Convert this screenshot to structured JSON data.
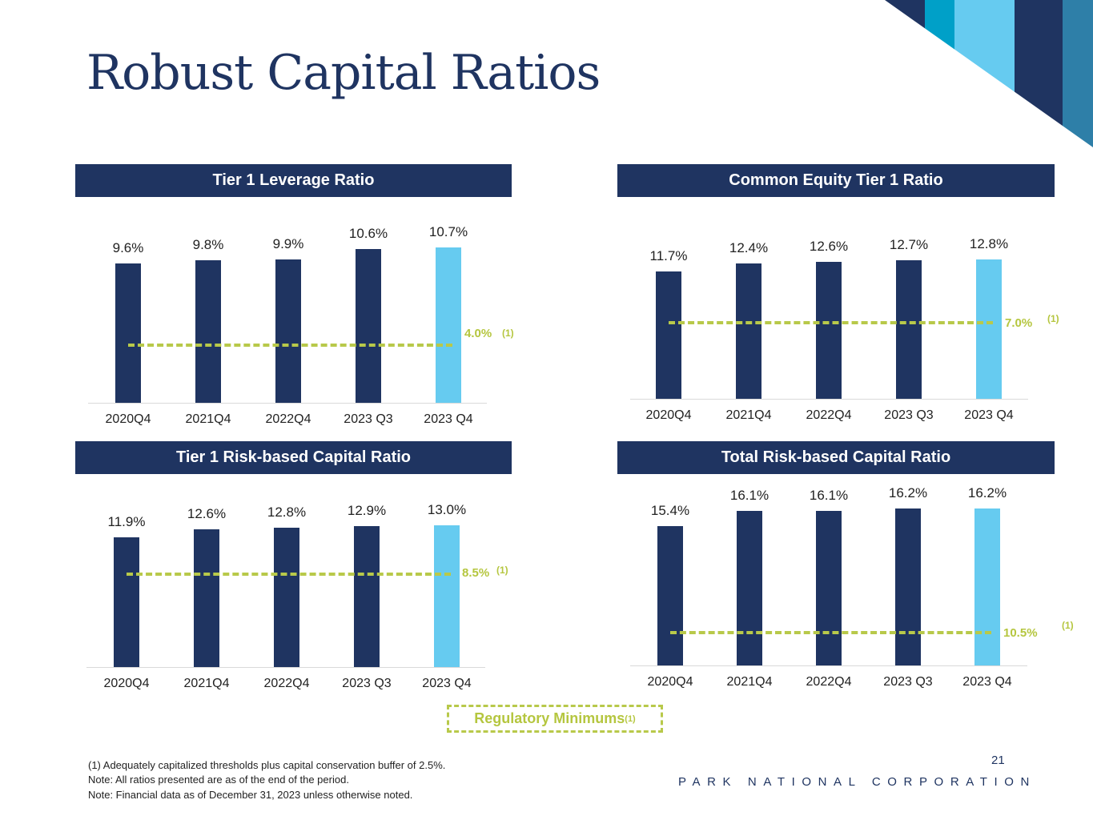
{
  "title": "Robust Capital Ratios",
  "colors": {
    "navy": "#1f3461",
    "highlight": "#66cbf0",
    "threshold": "#b8c94a",
    "stripes": [
      "#1f3461",
      "#00a0c8",
      "#66cbf0",
      "#1f3461",
      "#2e7fa8"
    ]
  },
  "chart_data": [
    {
      "type": "bar",
      "title": "Tier 1 Leverage Ratio",
      "categories": [
        "2020Q4",
        "2021Q4",
        "2022Q4",
        "2023 Q3",
        "2023 Q4"
      ],
      "values": [
        9.6,
        9.8,
        9.9,
        10.6,
        10.7
      ],
      "labels": [
        "9.6%",
        "9.8%",
        "9.9%",
        "10.6%",
        "10.7%"
      ],
      "threshold": 4.0,
      "threshold_label": "4.0%",
      "threshold_note": "(1)",
      "ylim": [
        0,
        11
      ],
      "highlight_last": true
    },
    {
      "type": "bar",
      "title": "Common Equity Tier 1 Ratio",
      "categories": [
        "2020Q4",
        "2021Q4",
        "2022Q4",
        "2023 Q3",
        "2023 Q4"
      ],
      "values": [
        11.7,
        12.4,
        12.6,
        12.7,
        12.8
      ],
      "labels": [
        "11.7%",
        "12.4%",
        "12.6%",
        "12.7%",
        "12.8%"
      ],
      "threshold": 7.0,
      "threshold_label": "7.0%",
      "threshold_note": "(1)",
      "ylim": [
        0,
        13
      ],
      "highlight_last": true
    },
    {
      "type": "bar",
      "title": "Tier 1 Risk-based Capital Ratio",
      "categories": [
        "2020Q4",
        "2021Q4",
        "2022Q4",
        "2023 Q3",
        "2023 Q4"
      ],
      "values": [
        11.9,
        12.6,
        12.8,
        12.9,
        13.0
      ],
      "labels": [
        "11.9%",
        "12.6%",
        "12.8%",
        "12.9%",
        "13.0%"
      ],
      "threshold": 8.5,
      "threshold_label": "8.5%",
      "threshold_note": "(1)",
      "ylim": [
        0,
        13
      ],
      "highlight_last": true
    },
    {
      "type": "bar",
      "title": "Total Risk-based Capital Ratio",
      "categories": [
        "2020Q4",
        "2021Q4",
        "2022Q4",
        "2023 Q3",
        "2023 Q4"
      ],
      "values": [
        15.4,
        16.1,
        16.1,
        16.2,
        16.2
      ],
      "labels": [
        "15.4%",
        "16.1%",
        "16.1%",
        "16.2%",
        "16.2%"
      ],
      "threshold": 10.5,
      "threshold_label": "10.5%",
      "threshold_note": "(1)",
      "ylim": [
        9,
        17
      ],
      "highlight_last": true
    }
  ],
  "legend": {
    "label": "Regulatory Minimums",
    "note": "(1)"
  },
  "footnotes": [
    "(1)    Adequately capitalized thresholds plus capital conservation buffer of 2.5%.",
    "Note: All ratios presented are as of the end of the period.",
    "Note: Financial data as of December 31, 2023 unless otherwise noted."
  ],
  "page_number": "21",
  "company": "PARK NATIONAL CORPORATION"
}
